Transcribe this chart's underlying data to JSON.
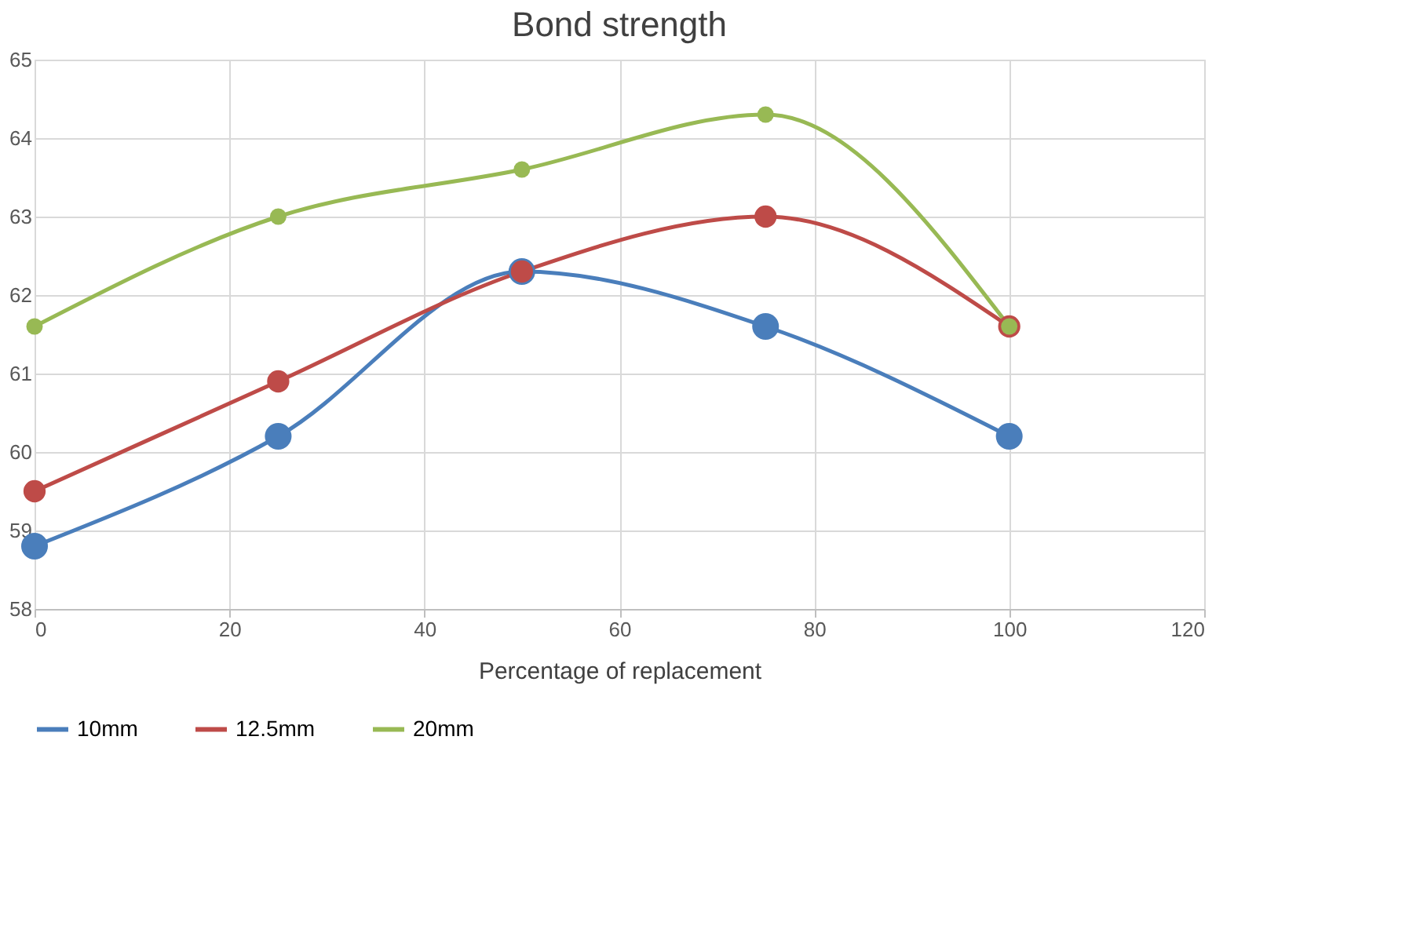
{
  "chart_data": {
    "type": "line",
    "title": "Bond strength",
    "xlabel": "Percentage of replacement",
    "x": [
      0,
      25,
      50,
      75,
      100
    ],
    "series": [
      {
        "name": "10mm",
        "color": "#4a7ebb",
        "values": [
          58.8,
          60.2,
          62.3,
          61.6,
          60.2
        ]
      },
      {
        "name": "12.5mm",
        "color": "#be4b48",
        "values": [
          59.5,
          60.9,
          62.3,
          63.0,
          61.6
        ]
      },
      {
        "name": "20mm",
        "color": "#98b954",
        "values": [
          61.6,
          63.0,
          63.6,
          64.3,
          61.6
        ]
      }
    ],
    "xlim": [
      0,
      120
    ],
    "xticks": [
      0,
      20,
      40,
      60,
      80,
      100,
      120
    ],
    "ylim": [
      58,
      65
    ],
    "yticks": [
      58,
      59,
      60,
      61,
      62,
      63,
      64,
      65
    ],
    "grid": true,
    "legend": "bottom",
    "marker": "circle",
    "line_style": "solid"
  }
}
